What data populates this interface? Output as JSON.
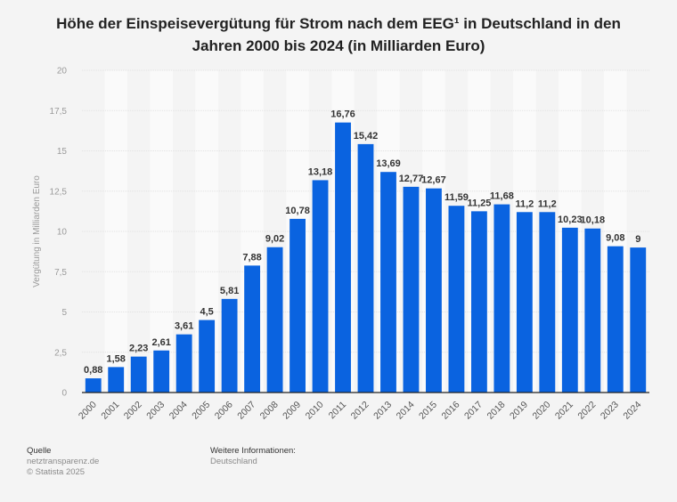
{
  "chart_data": {
    "type": "bar",
    "title": "Höhe der Einspeisevergütung für Strom nach dem EEG¹ in Deutschland in den Jahren 2000 bis 2024 (in Milliarden Euro)",
    "title_lines": [
      "Höhe der Einspeisevergütung für Strom nach dem EEG¹ in Deutschland in den",
      "Jahren 2000 bis 2024 (in Milliarden Euro)"
    ],
    "xlabel": "",
    "ylabel": "Vergütung in Milliarden Euro",
    "ylim": [
      0,
      20
    ],
    "yticks": [
      0,
      2.5,
      5,
      7.5,
      10,
      12.5,
      15,
      17.5,
      20
    ],
    "ytick_labels": [
      "0",
      "2,5",
      "5",
      "7,5",
      "10",
      "12,5",
      "15",
      "17,5",
      "20"
    ],
    "grid": true,
    "bar_color": "#0a63e0",
    "categories": [
      "2000",
      "2001",
      "2002",
      "2003",
      "2004",
      "2005",
      "2006",
      "2007",
      "2008",
      "2009",
      "2010",
      "2011",
      "2012",
      "2013",
      "2014",
      "2015",
      "2016",
      "2017",
      "2018",
      "2019",
      "2020",
      "2021",
      "2022",
      "2023",
      "2024"
    ],
    "values": [
      0.88,
      1.58,
      2.23,
      2.61,
      3.61,
      4.5,
      5.81,
      7.88,
      9.02,
      10.78,
      13.18,
      16.76,
      15.42,
      13.69,
      12.77,
      12.67,
      11.59,
      11.25,
      11.68,
      11.2,
      11.2,
      10.23,
      10.18,
      9.08,
      9
    ],
    "value_labels": [
      "0,88",
      "1,58",
      "2,23",
      "2,61",
      "3,61",
      "4,5",
      "5,81",
      "7,88",
      "9,02",
      "10,78",
      "13,18",
      "16,76",
      "15,42",
      "13,69",
      "12,77",
      "12,67",
      "11,59",
      "11,25",
      "11,68",
      "11,2",
      "11,2",
      "10,23",
      "10,18",
      "9,08",
      "9"
    ]
  },
  "footer": {
    "source_heading": "Quelle",
    "source": "netztransparenz.de",
    "copyright": "© Statista 2025",
    "info_heading": "Weitere Informationen:",
    "info": "Deutschland"
  }
}
